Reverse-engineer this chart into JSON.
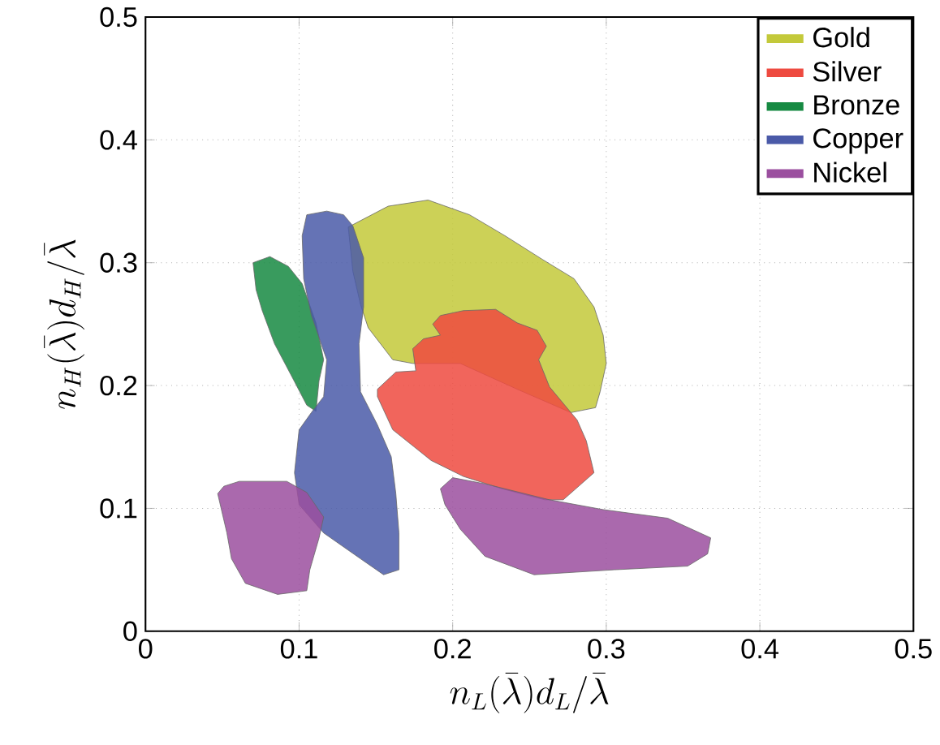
{
  "chart_data": {
    "type": "area",
    "xlabel": "n_L(\\bar{\\lambda})d_L/\\bar{\\lambda}",
    "ylabel": "n_H(\\bar{\\lambda})d_H/\\bar{\\lambda}",
    "xlim": [
      0,
      0.5
    ],
    "ylim": [
      0,
      0.5
    ],
    "xticks": [
      0,
      0.1,
      0.2,
      0.3,
      0.4,
      0.5
    ],
    "yticks": [
      0,
      0.1,
      0.2,
      0.3,
      0.4,
      0.5
    ],
    "grid": true,
    "legend": "top right",
    "series": [
      {
        "name": "Gold",
        "color": "#c3c93a",
        "x": [
          0.132,
          0.158,
          0.184,
          0.211,
          0.234,
          0.258,
          0.279,
          0.292,
          0.298,
          0.3,
          0.296,
          0.293,
          0.277,
          0.242,
          0.205,
          0.174,
          0.161,
          0.145,
          0.14,
          0.135
        ],
        "values": [
          0.329,
          0.346,
          0.351,
          0.339,
          0.322,
          0.303,
          0.287,
          0.264,
          0.241,
          0.218,
          0.195,
          0.182,
          0.178,
          0.197,
          0.218,
          0.218,
          0.221,
          0.247,
          0.266,
          0.293
        ]
      },
      {
        "name": "Silver",
        "color": "#ee4a40",
        "x": [
          0.192,
          0.207,
          0.228,
          0.242,
          0.255,
          0.261,
          0.256,
          0.263,
          0.281,
          0.287,
          0.292,
          0.272,
          0.26,
          0.232,
          0.207,
          0.186,
          0.161,
          0.151,
          0.151,
          0.163,
          0.176,
          0.174,
          0.181,
          0.192,
          0.187
        ],
        "values": [
          0.257,
          0.261,
          0.262,
          0.251,
          0.245,
          0.232,
          0.221,
          0.199,
          0.172,
          0.155,
          0.129,
          0.107,
          0.107,
          0.116,
          0.126,
          0.139,
          0.164,
          0.191,
          0.197,
          0.211,
          0.212,
          0.23,
          0.238,
          0.241,
          0.25
        ]
      },
      {
        "name": "Bronze",
        "color": "#168a42",
        "x": [
          0.07,
          0.081,
          0.093,
          0.102,
          0.111,
          0.116,
          0.113,
          0.111,
          0.105,
          0.095,
          0.084,
          0.076,
          0.072
        ],
        "values": [
          0.3,
          0.305,
          0.297,
          0.283,
          0.251,
          0.221,
          0.204,
          0.179,
          0.184,
          0.208,
          0.234,
          0.261,
          0.278
        ]
      },
      {
        "name": "Copper",
        "color": "#4a5aa8",
        "x": [
          0.105,
          0.118,
          0.129,
          0.135,
          0.142,
          0.142,
          0.139,
          0.14,
          0.151,
          0.16,
          0.163,
          0.165,
          0.165,
          0.155,
          0.14,
          0.116,
          0.1,
          0.097,
          0.1,
          0.108,
          0.116,
          0.118,
          0.108,
          0.103,
          0.102
        ],
        "values": [
          0.339,
          0.342,
          0.339,
          0.33,
          0.304,
          0.264,
          0.234,
          0.195,
          0.168,
          0.142,
          0.112,
          0.08,
          0.05,
          0.046,
          0.059,
          0.08,
          0.103,
          0.129,
          0.164,
          0.178,
          0.191,
          0.221,
          0.257,
          0.287,
          0.322
        ]
      },
      {
        "name": "Nickel",
        "color": "#9b4f9f",
        "x": [
          0.047,
          0.051,
          0.061,
          0.092,
          0.105,
          0.116,
          0.113,
          0.107,
          0.105,
          0.086,
          0.065,
          0.056,
          0.053,
          null,
          0.192,
          0.2,
          0.221,
          0.263,
          0.298,
          0.34,
          0.368,
          0.366,
          0.353,
          0.305,
          0.253,
          0.221,
          0.205,
          0.195
        ],
        "values": [
          0.112,
          0.118,
          0.122,
          0.122,
          0.113,
          0.093,
          0.076,
          0.05,
          0.033,
          0.03,
          0.039,
          0.059,
          0.08,
          null,
          0.116,
          0.125,
          0.12,
          0.107,
          0.099,
          0.092,
          0.076,
          0.063,
          0.053,
          0.05,
          0.046,
          0.061,
          0.083,
          0.103
        ]
      }
    ]
  }
}
